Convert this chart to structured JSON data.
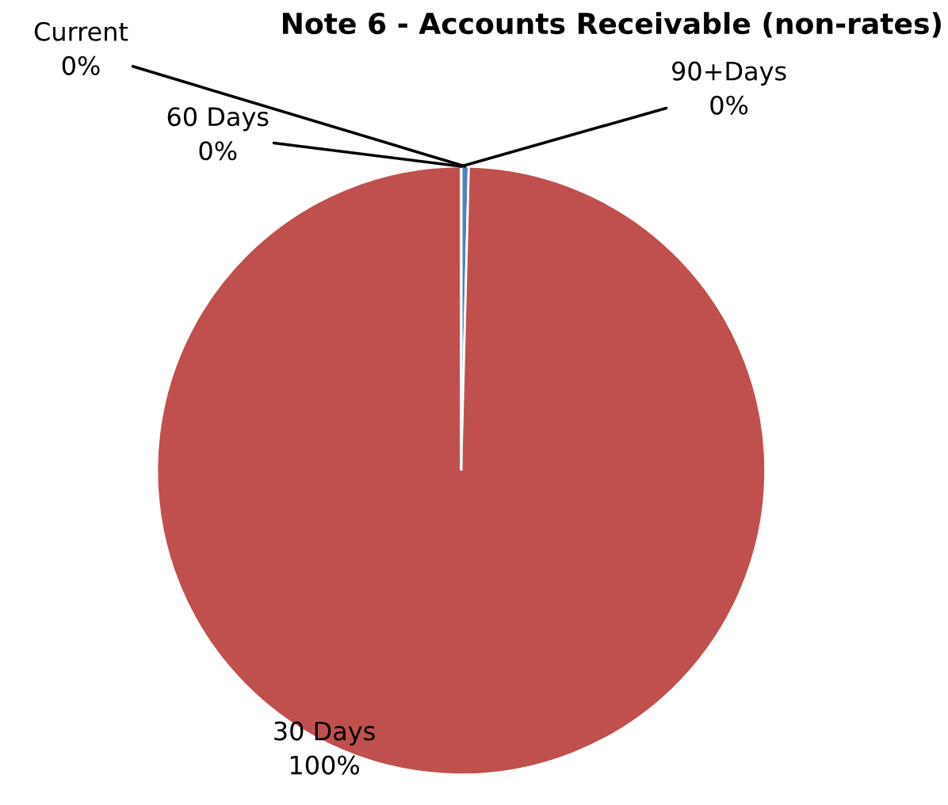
{
  "chart_data": {
    "type": "pie",
    "title": "Note 6 - Accounts Receivable (non-rates)",
    "categories": [
      "Current",
      "30 Days",
      "60 Days",
      "90+Days"
    ],
    "values": [
      0.4,
      99.6,
      0,
      0
    ],
    "value_labels": [
      "0%",
      "100%",
      "0%",
      "0%"
    ],
    "colors": [
      "#4f81bd",
      "#c0504d",
      "#9bbb59",
      "#8064a2"
    ]
  }
}
